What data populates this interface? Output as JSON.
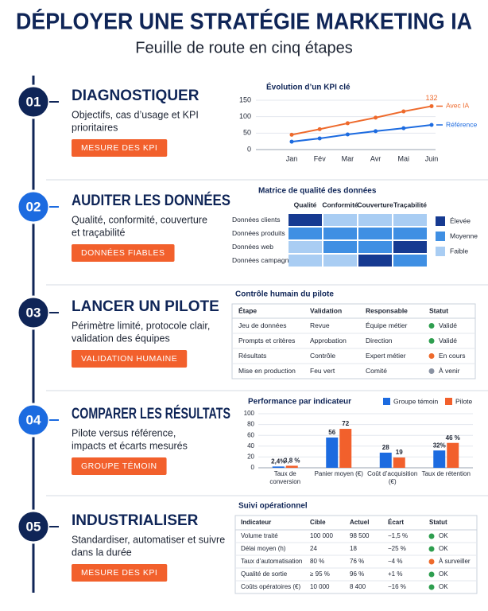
{
  "header": {
    "title": "DÉPLOYER UNE STRATÉGIE MARKETING IA",
    "subtitle": "Feuille de route en cinq étapes"
  },
  "steps": [
    {
      "number": "01",
      "title": "DIAGNOSTIQUER",
      "text": [
        "Objectifs, cas d’usage et KPI",
        "prioritaires"
      ],
      "button": "MESURE DES KPI",
      "color": "#0f2557"
    },
    {
      "number": "02",
      "title": "AUDITER LES DONNÉES",
      "text": [
        "Qualité, conformité, couverture",
        "et traçabilité"
      ],
      "button": "DONNÉES FIABLES",
      "color": "#1c6be0"
    },
    {
      "number": "03",
      "title": "LANCER UN PILOTE",
      "text": [
        "Périmètre limité, protocole clair,",
        "validation des équipes"
      ],
      "button": "VALIDATION HUMAINE",
      "color": "#0f2557"
    },
    {
      "number": "04",
      "title": "COMPARER LES RÉSULTATS",
      "text": [
        "Pilote versus référence,",
        "impacts et écarts mesurés"
      ],
      "button": "GROUPE TÉMOIN",
      "color": "#1c6be0"
    },
    {
      "number": "05",
      "title": "INDUSTRIALISER",
      "text": [
        "Standardiser, automatiser et suivre",
        "dans la durée"
      ],
      "button": "MESURE DES KPI",
      "color": "#0f2557"
    }
  ],
  "chart_data": [
    {
      "type": "line",
      "title": "Évolution d’un KPI clé",
      "categories": [
        "Jan",
        "Fév",
        "Mar",
        "Avr",
        "Mai",
        "Juin"
      ],
      "series": [
        {
          "name": "Avec IA",
          "color": "#ee6a2c",
          "values": [
            45,
            62,
            80,
            97,
            116,
            132
          ]
        },
        {
          "name": "Référence",
          "color": "#1c6be0",
          "values": [
            24,
            34,
            46,
            56,
            65,
            75
          ]
        }
      ],
      "ylim": [
        0,
        150
      ],
      "yticks": [
        0,
        50,
        100,
        150
      ],
      "grid": true,
      "label_last": true
    },
    {
      "type": "bar",
      "title": "Performance par indicateur",
      "categories": [
        "Taux de conversion",
        "Panier moyen (€)",
        "Coût d’acquisition (€)",
        "Taux de rétention"
      ],
      "series": [
        {
          "name": "Groupe témoin",
          "color": "#1c6be0",
          "values": [
            2.4,
            56,
            28,
            32
          ],
          "value_labels": [
            "2,4%",
            "56",
            "28",
            "32%"
          ]
        },
        {
          "name": "Pilote",
          "color": "#f2602c",
          "values": [
            3.8,
            72,
            19,
            46
          ],
          "value_labels": [
            "3,8 %",
            "72",
            "19",
            "46 %"
          ]
        }
      ],
      "ylim": [
        0,
        100
      ],
      "yticks": [
        0,
        20,
        40,
        60,
        80,
        100
      ],
      "grid": true,
      "legend": "top-right"
    }
  ],
  "matrix": {
    "title": "Matrice de qualité des données",
    "columns": [
      "Qualité",
      "Conformité",
      "Couverture",
      "Traçabilité"
    ],
    "rows": [
      "Données clients",
      "Données produits",
      "Données web",
      "Données campagnes"
    ],
    "cells": [
      [
        "Élevée",
        "Faible",
        "Faible",
        "Faible"
      ],
      [
        "Moyenne",
        "Moyenne",
        "Moyenne",
        "Moyenne"
      ],
      [
        "Faible",
        "Moyenne",
        "Moyenne",
        "Élevée"
      ],
      [
        "Faible",
        "Faible",
        "Élevée",
        "Moyenne"
      ]
    ],
    "legend": [
      {
        "label": "Élevée",
        "color": "#163a91"
      },
      {
        "label": "Moyenne",
        "color": "#3f8fe3"
      },
      {
        "label": "Faible",
        "color": "#a9cdf3"
      }
    ]
  },
  "pilot_table": {
    "title": "Contrôle humain du pilote",
    "headers": [
      "Étape",
      "Validation",
      "Responsable",
      "Statut"
    ],
    "rows": [
      [
        "Jeu de données",
        "Revue",
        "Équipe métier",
        "Validé"
      ],
      [
        "Prompts et critères",
        "Approbation",
        "Direction",
        "Validé"
      ],
      [
        "Résultats",
        "Contrôle",
        "Expert métier",
        "En cours"
      ],
      [
        "Mise en production",
        "Feu vert",
        "Comité",
        "À venir"
      ]
    ],
    "status_colors": {
      "Validé": "#2e9e4f",
      "En cours": "#ee6a2c",
      "À venir": "#8a93a3"
    }
  },
  "ops_table": {
    "title": "Suivi opérationnel",
    "headers": [
      "Indicateur",
      "Cible",
      "Actuel",
      "Écart",
      "Statut"
    ],
    "rows": [
      [
        "Volume traité",
        "100 000",
        "98 500",
        "−1,5 %",
        "OK"
      ],
      [
        "Délai moyen (h)",
        "24",
        "18",
        "−25 %",
        "OK"
      ],
      [
        "Taux d’automatisation",
        "80 %",
        "76 %",
        "−4 %",
        "À surveiller"
      ],
      [
        "Qualité de sortie",
        "≥ 95 %",
        "96 %",
        "+1 %",
        "OK"
      ],
      [
        "Coûts opératoires (€)",
        "10 000",
        "8 400",
        "−16 %",
        "OK"
      ]
    ],
    "status_colors": {
      "OK": "#2e9e4f",
      "À surveiller": "#ee6a2c"
    }
  }
}
